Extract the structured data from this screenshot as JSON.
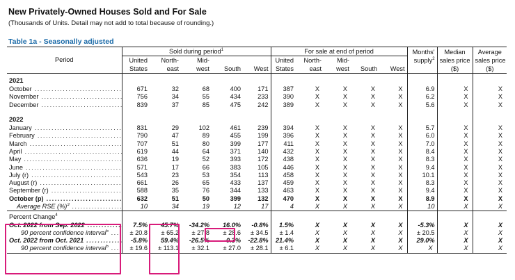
{
  "title": "New Privately-Owned Houses Sold and For Sale",
  "subtitle": "(Thousands of Units.  Detail may not add to total because of rounding.)",
  "table_title": "Table 1a - Seasonally adjusted",
  "headers": {
    "period": "Period",
    "sold_group": "Sold during period",
    "sold_group_note": "1",
    "forsale_group": "For sale at end of period",
    "months_l1": "Months'",
    "months_l2": "supply",
    "months_note": "2",
    "median_l1": "Median",
    "median_l2": "sales price",
    "median_l3": "($)",
    "average_l1": "Average",
    "average_l2": "sales price",
    "average_l3": "($)",
    "us_l1": "United",
    "us_l2": "States",
    "ne_l1": "North-",
    "ne_l2": "east",
    "mw_l1": "Mid-",
    "mw_l2": "west",
    "south": "South",
    "west": "West"
  },
  "years": {
    "y2021": "2021",
    "y2022": "2022"
  },
  "rows": [
    {
      "label": "October",
      "cells": [
        "671",
        "32",
        "68",
        "400",
        "171",
        "387",
        "X",
        "X",
        "X",
        "X",
        "6.9",
        "X",
        "X"
      ]
    },
    {
      "label": "November",
      "cells": [
        "756",
        "34",
        "55",
        "434",
        "233",
        "390",
        "X",
        "X",
        "X",
        "X",
        "6.2",
        "X",
        "X"
      ]
    },
    {
      "label": "December",
      "cells": [
        "839",
        "37",
        "85",
        "475",
        "242",
        "389",
        "X",
        "X",
        "X",
        "X",
        "5.6",
        "X",
        "X"
      ]
    },
    {
      "label": "January",
      "cells": [
        "831",
        "29",
        "102",
        "461",
        "239",
        "394",
        "X",
        "X",
        "X",
        "X",
        "5.7",
        "X",
        "X"
      ]
    },
    {
      "label": "February",
      "cells": [
        "790",
        "47",
        "89",
        "455",
        "199",
        "396",
        "X",
        "X",
        "X",
        "X",
        "6.0",
        "X",
        "X"
      ]
    },
    {
      "label": "March",
      "cells": [
        "707",
        "51",
        "80",
        "399",
        "177",
        "411",
        "X",
        "X",
        "X",
        "X",
        "7.0",
        "X",
        "X"
      ]
    },
    {
      "label": "April",
      "cells": [
        "619",
        "44",
        "64",
        "371",
        "140",
        "432",
        "X",
        "X",
        "X",
        "X",
        "8.4",
        "X",
        "X"
      ]
    },
    {
      "label": "May",
      "cells": [
        "636",
        "19",
        "52",
        "393",
        "172",
        "438",
        "X",
        "X",
        "X",
        "X",
        "8.3",
        "X",
        "X"
      ]
    },
    {
      "label": "June",
      "cells": [
        "571",
        "17",
        "66",
        "383",
        "105",
        "446",
        "X",
        "X",
        "X",
        "X",
        "9.4",
        "X",
        "X"
      ]
    },
    {
      "label": "July (r)",
      "cells": [
        "543",
        "23",
        "53",
        "354",
        "113",
        "458",
        "X",
        "X",
        "X",
        "X",
        "10.1",
        "X",
        "X"
      ]
    },
    {
      "label": "August (r)",
      "cells": [
        "661",
        "26",
        "65",
        "433",
        "137",
        "459",
        "X",
        "X",
        "X",
        "X",
        "8.3",
        "X",
        "X"
      ]
    },
    {
      "label": "September (r)",
      "cells": [
        "588",
        "35",
        "76",
        "344",
        "133",
        "463",
        "X",
        "X",
        "X",
        "X",
        "9.4",
        "X",
        "X"
      ]
    },
    {
      "label": "October (p)",
      "cells": [
        "632",
        "51",
        "50",
        "399",
        "132",
        "470",
        "X",
        "X",
        "X",
        "X",
        "8.9",
        "X",
        "X"
      ]
    },
    {
      "label": "Average RSE (%)",
      "note": "3",
      "cells": [
        "10",
        "34",
        "19",
        "12",
        "17",
        "4",
        "X",
        "X",
        "X",
        "X",
        "10",
        "X",
        "X"
      ]
    }
  ],
  "pct": {
    "label": "Percent Change",
    "note": "4",
    "rows": [
      {
        "label": "Oct. 2022 from Sep. 2022",
        "cells": [
          "7.5%",
          "45.7%",
          "-34.2%",
          "16.0%",
          "-0.8%",
          "1.5%",
          "X",
          "X",
          "X",
          "X",
          "-5.3%",
          "X",
          "X"
        ]
      },
      {
        "label": "90 percent confidence interval",
        "note": "5",
        "cells": [
          "± 20.8",
          "± 65.2",
          "± 27.8",
          "± 28.6",
          "± 34.5",
          "± 1.4",
          "X",
          "X",
          "X",
          "X",
          "± 20.5",
          "X",
          "X"
        ]
      },
      {
        "label": "Oct. 2022 from Oct. 2021",
        "cells": [
          "-5.8%",
          "59.4%",
          "-26.5%",
          "-0.3%",
          "-22.8%",
          "21.4%",
          "X",
          "X",
          "X",
          "X",
          "29.0%",
          "X",
          "X"
        ]
      },
      {
        "label": "90 percent confidence interval",
        "note": "5",
        "cells": [
          "± 19.6",
          "± 113.1",
          "± 32.1",
          "± 27.0",
          "± 28.1",
          "± 6.1",
          "X",
          "X",
          "X",
          "X",
          "X",
          "X",
          "X"
        ]
      }
    ]
  },
  "highlight_color": "#d81b7a"
}
